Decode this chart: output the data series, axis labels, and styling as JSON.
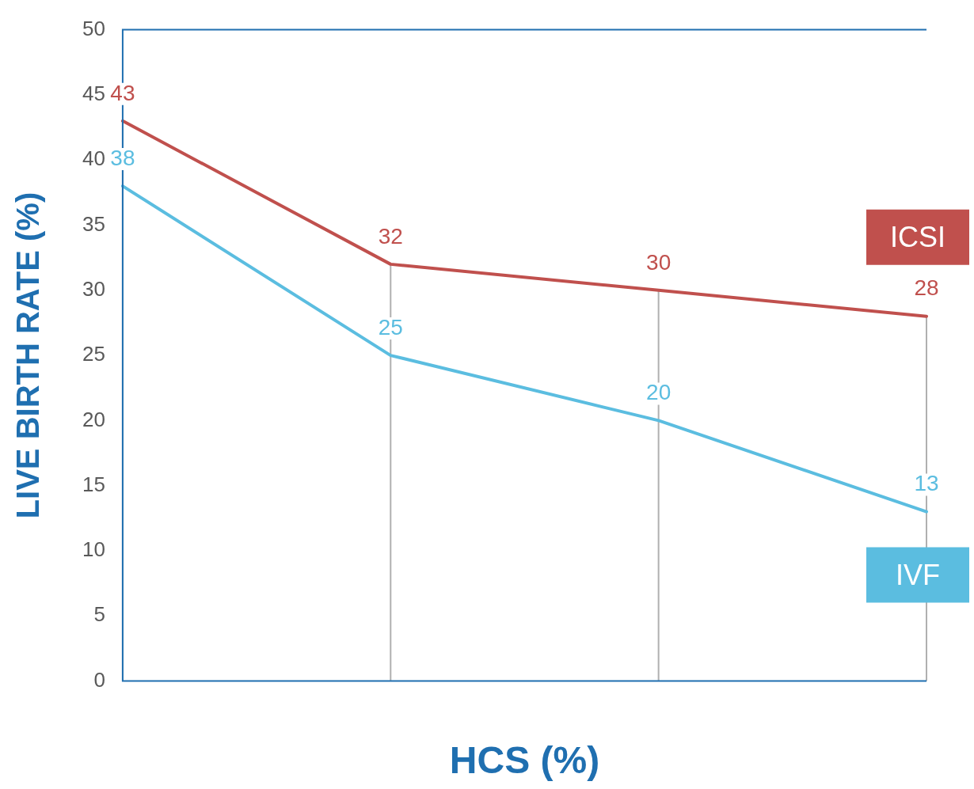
{
  "chart_data": {
    "type": "line",
    "xlabel": "HCS (%)",
    "ylabel": "LIVE BIRTH RATE (%)",
    "categories": [
      null,
      null,
      null,
      null
    ],
    "series": [
      {
        "name": "ICSI",
        "color": "#c0504d",
        "values": [
          43,
          32,
          30,
          28
        ]
      },
      {
        "name": "IVF",
        "color": "#5bbde0",
        "values": [
          38,
          25,
          20,
          13
        ]
      }
    ],
    "ylim": [
      0,
      50
    ],
    "yticks": [
      0,
      5,
      10,
      15,
      20,
      25,
      30,
      35,
      40,
      45,
      50
    ],
    "grid": false,
    "legend": "right",
    "data_labels": true,
    "marker": "none",
    "line_style": "solid"
  }
}
